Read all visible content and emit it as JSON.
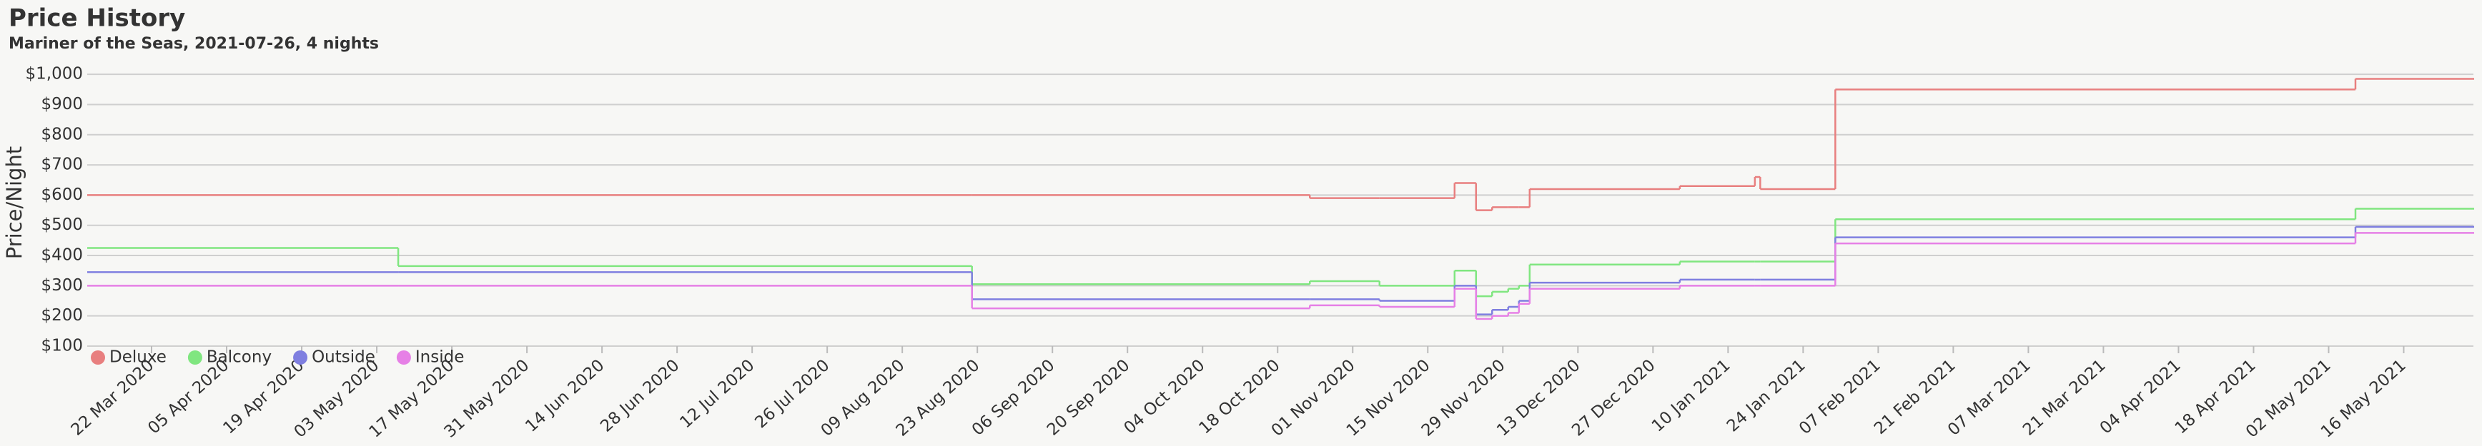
{
  "chart_data": {
    "type": "step-line",
    "title": "Price History",
    "subtitle": "Mariner of the Seas, 2021-07-26, 4 nights",
    "y_label": "Price/Night",
    "x": [
      "2020-03-10",
      "2020-05-07",
      "2020-08-22",
      "2020-10-24",
      "2020-11-06",
      "2020-11-20",
      "2020-11-24",
      "2020-11-27",
      "2020-11-30",
      "2020-12-02",
      "2020-12-04",
      "2021-01-01",
      "2021-01-15",
      "2021-01-16",
      "2021-01-30",
      "2021-05-07",
      "2021-05-29"
    ],
    "series": [
      {
        "name": "Deluxe",
        "color": "#e87f7f",
        "values": [
          600,
          600,
          600,
          590,
          590,
          640,
          550,
          560,
          560,
          560,
          620,
          630,
          660,
          620,
          950,
          985,
          985
        ]
      },
      {
        "name": "Balcony",
        "color": "#80e680",
        "values": [
          425,
          365,
          305,
          315,
          300,
          350,
          265,
          280,
          290,
          300,
          370,
          380,
          380,
          380,
          520,
          555,
          555
        ]
      },
      {
        "name": "Outside",
        "color": "#7f7fe0",
        "values": [
          345,
          345,
          255,
          255,
          250,
          300,
          205,
          220,
          230,
          250,
          310,
          320,
          320,
          320,
          460,
          495,
          495
        ]
      },
      {
        "name": "Inside",
        "color": "#e680e6",
        "values": [
          300,
          300,
          225,
          235,
          230,
          290,
          190,
          200,
          210,
          240,
          290,
          300,
          300,
          300,
          440,
          475,
          475
        ]
      }
    ],
    "xlim": [
      "2020-03-10",
      "2021-05-29"
    ],
    "xticks": [
      {
        "value": "2020-03-22",
        "label": "22 Mar 2020"
      },
      {
        "value": "2020-04-05",
        "label": "05 Apr 2020"
      },
      {
        "value": "2020-04-19",
        "label": "19 Apr 2020"
      },
      {
        "value": "2020-05-03",
        "label": "03 May 2020"
      },
      {
        "value": "2020-05-17",
        "label": "17 May 2020"
      },
      {
        "value": "2020-05-31",
        "label": "31 May 2020"
      },
      {
        "value": "2020-06-14",
        "label": "14 Jun 2020"
      },
      {
        "value": "2020-06-28",
        "label": "28 Jun 2020"
      },
      {
        "value": "2020-07-12",
        "label": "12 Jul 2020"
      },
      {
        "value": "2020-07-26",
        "label": "26 Jul 2020"
      },
      {
        "value": "2020-08-09",
        "label": "09 Aug 2020"
      },
      {
        "value": "2020-08-23",
        "label": "23 Aug 2020"
      },
      {
        "value": "2020-09-06",
        "label": "06 Sep 2020"
      },
      {
        "value": "2020-09-20",
        "label": "20 Sep 2020"
      },
      {
        "value": "2020-10-04",
        "label": "04 Oct 2020"
      },
      {
        "value": "2020-10-18",
        "label": "18 Oct 2020"
      },
      {
        "value": "2020-11-01",
        "label": "01 Nov 2020"
      },
      {
        "value": "2020-11-15",
        "label": "15 Nov 2020"
      },
      {
        "value": "2020-11-29",
        "label": "29 Nov 2020"
      },
      {
        "value": "2020-12-13",
        "label": "13 Dec 2020"
      },
      {
        "value": "2020-12-27",
        "label": "27 Dec 2020"
      },
      {
        "value": "2021-01-10",
        "label": "10 Jan 2021"
      },
      {
        "value": "2021-01-24",
        "label": "24 Jan 2021"
      },
      {
        "value": "2021-02-07",
        "label": "07 Feb 2021"
      },
      {
        "value": "2021-02-21",
        "label": "21 Feb 2021"
      },
      {
        "value": "2021-03-07",
        "label": "07 Mar 2021"
      },
      {
        "value": "2021-03-21",
        "label": "21 Mar 2021"
      },
      {
        "value": "2021-04-04",
        "label": "04 Apr 2021"
      },
      {
        "value": "2021-04-18",
        "label": "18 Apr 2021"
      },
      {
        "value": "2021-05-02",
        "label": "02 May 2021"
      },
      {
        "value": "2021-05-16",
        "label": "16 May 2021"
      }
    ],
    "ylim": [
      100,
      1050
    ],
    "yticks": [
      {
        "value": 100,
        "label": "$100"
      },
      {
        "value": 200,
        "label": "$200"
      },
      {
        "value": 300,
        "label": "$300"
      },
      {
        "value": 400,
        "label": "$400"
      },
      {
        "value": 500,
        "label": "$500"
      },
      {
        "value": 600,
        "label": "$600"
      },
      {
        "value": 700,
        "label": "$700"
      },
      {
        "value": 800,
        "label": "$800"
      },
      {
        "value": 900,
        "label": "$900"
      },
      {
        "value": 1000,
        "label": "$1,000"
      }
    ],
    "grid": true,
    "legend": "bottom-left"
  }
}
